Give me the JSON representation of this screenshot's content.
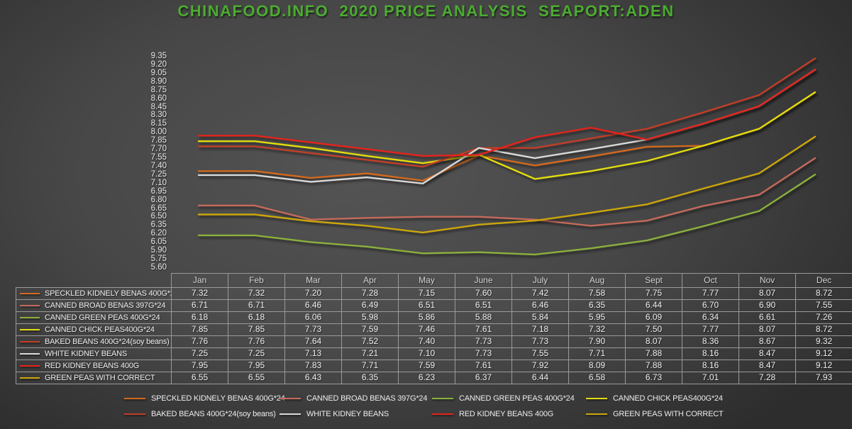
{
  "title": "CHINAFOOD.INFO  2020 PRICE ANALYSIS  SEAPORT:ADEN",
  "title_color": "#4CAC30",
  "chart_data": {
    "type": "line",
    "x": [
      "Jan",
      "Feb",
      "Mar",
      "Apr",
      "May",
      "June",
      "July",
      "Aug",
      "Sept",
      "Oct",
      "Nov",
      "Dec"
    ],
    "ylim": [
      5.6,
      9.35
    ],
    "ytick_step": 0.15,
    "yticks": [
      "9.35",
      "9.20",
      "9.05",
      "8.90",
      "8.75",
      "8.60",
      "8.45",
      "8.30",
      "8.15",
      "8.00",
      "7.85",
      "7.70",
      "7.55",
      "7.40",
      "7.25",
      "7.10",
      "6.95",
      "6.80",
      "6.65",
      "6.50",
      "6.35",
      "6.20",
      "6.05",
      "5.90",
      "5.75",
      "5.60"
    ],
    "grid": false,
    "legend_position": "bottom",
    "series": [
      {
        "name": "SPECKLED KIDNELY BENAS 400G*24",
        "color": "#D2691E",
        "values": [
          7.32,
          7.32,
          7.2,
          7.28,
          7.15,
          7.6,
          7.42,
          7.58,
          7.75,
          7.77,
          8.07,
          8.72
        ]
      },
      {
        "name": "CANNED BROAD BENAS 397G*24",
        "color": "#C56A5B",
        "values": [
          6.71,
          6.71,
          6.46,
          6.49,
          6.51,
          6.51,
          6.46,
          6.35,
          6.44,
          6.7,
          6.9,
          7.55
        ]
      },
      {
        "name": "CANNED GREEN PEAS 400G*24",
        "color": "#8CB03C",
        "values": [
          6.18,
          6.18,
          6.06,
          5.98,
          5.86,
          5.88,
          5.84,
          5.95,
          6.09,
          6.34,
          6.61,
          7.26
        ]
      },
      {
        "name": "CANNED CHICK PEAS400G*24",
        "color": "#E3DC0E",
        "values": [
          7.85,
          7.85,
          7.73,
          7.59,
          7.46,
          7.61,
          7.18,
          7.32,
          7.5,
          7.77,
          8.07,
          8.72
        ]
      },
      {
        "name": "BAKED BEANS 400G*24(soy beans)",
        "color": "#C13E28",
        "values": [
          7.76,
          7.76,
          7.64,
          7.52,
          7.4,
          7.73,
          7.73,
          7.9,
          8.07,
          8.36,
          8.67,
          9.32
        ]
      },
      {
        "name": "WHITE KIDNEY BEANS",
        "color": "#D9D9D9",
        "values": [
          7.25,
          7.25,
          7.13,
          7.21,
          7.1,
          7.73,
          7.55,
          7.71,
          7.88,
          8.16,
          8.47,
          9.12
        ]
      },
      {
        "name": "RED KIDNEY BEANS 400G",
        "color": "#E5231B",
        "values": [
          7.95,
          7.95,
          7.83,
          7.71,
          7.59,
          7.61,
          7.92,
          8.09,
          7.88,
          8.16,
          8.47,
          9.12
        ]
      },
      {
        "name": "GREEN PEAS WITH CORRECT",
        "color": "#CBA60B",
        "values": [
          6.55,
          6.55,
          6.43,
          6.35,
          6.23,
          6.37,
          6.44,
          6.58,
          6.73,
          7.01,
          7.28,
          7.93
        ]
      }
    ]
  }
}
